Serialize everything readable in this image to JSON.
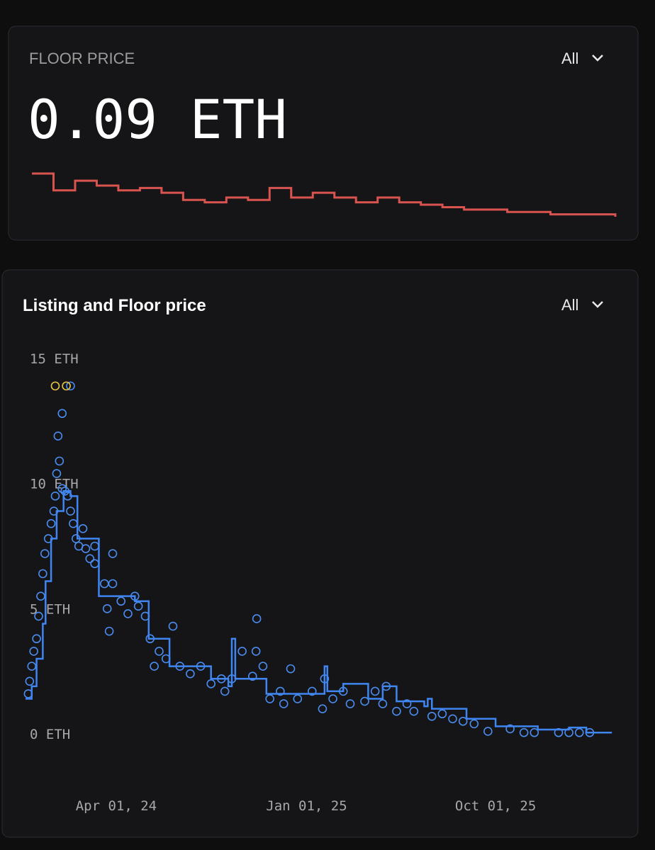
{
  "floor_card": {
    "label": "FLOOR PRICE",
    "range": "All",
    "value": "0.09 ETH",
    "sparkline_color": "#d9534f",
    "sparkline": [
      0.27,
      0.2,
      0.24,
      0.22,
      0.2,
      0.21,
      0.19,
      0.16,
      0.15,
      0.17,
      0.16,
      0.21,
      0.17,
      0.19,
      0.17,
      0.15,
      0.17,
      0.15,
      0.14,
      0.13,
      0.12,
      0.12,
      0.11,
      0.11,
      0.1,
      0.1,
      0.1,
      0.09
    ]
  },
  "chart_data": {
    "type": "scatter",
    "title": "Listing and Floor price",
    "range": "All",
    "xlim": [
      "2023-11-20",
      "2026-03-25"
    ],
    "xticks": [
      {
        "value": "2024-04-01",
        "label": "Apr 01, 24"
      },
      {
        "value": "2025-01-01",
        "label": "Jan 01, 25"
      },
      {
        "value": "2025-10-01",
        "label": "Oct 01, 25"
      }
    ],
    "ylim": [
      0,
      15
    ],
    "yticks": [
      {
        "value": 0,
        "label": "0 ETH"
      },
      {
        "value": 5,
        "label": "5 ETH"
      },
      {
        "value": 10,
        "label": "10 ETH"
      },
      {
        "value": 15,
        "label": "15 ETH"
      }
    ],
    "series": [
      {
        "type": "scatter",
        "color": "#4a8cf0",
        "x": [
          "2023-11-26",
          "2023-11-28",
          "2023-12-01",
          "2023-12-04",
          "2023-12-08",
          "2023-12-11",
          "2023-12-14",
          "2023-12-17",
          "2023-12-20",
          "2023-12-25",
          "2023-12-29",
          "2024-01-02",
          "2024-01-04",
          "2024-01-06",
          "2024-01-08",
          "2024-01-10",
          "2024-01-14",
          "2024-01-14",
          "2024-01-18",
          "2024-01-22",
          "2024-01-26",
          "2024-01-26",
          "2024-01-30",
          "2024-02-03",
          "2024-02-07",
          "2024-02-13",
          "2024-02-17",
          "2024-02-23",
          "2024-03-01",
          "2024-03-01",
          "2024-03-15",
          "2024-03-27",
          "2024-03-27",
          "2024-03-19",
          "2024-03-22",
          "2024-04-08",
          "2024-04-18",
          "2024-04-28",
          "2024-05-03",
          "2024-05-13",
          "2024-05-20",
          "2024-05-26",
          "2024-06-02",
          "2024-06-12",
          "2024-06-22",
          "2024-07-02",
          "2024-07-17",
          "2024-08-01",
          "2024-08-16",
          "2024-08-31",
          "2024-09-05",
          "2024-09-15",
          "2024-09-30",
          "2024-10-15",
          "2024-10-21",
          "2024-10-20",
          "2024-10-30",
          "2024-11-09",
          "2024-11-24",
          "2024-12-09",
          "2024-11-29",
          "2024-12-19",
          "2025-01-09",
          "2025-01-24",
          "2025-01-27",
          "2025-02-08",
          "2025-02-23",
          "2025-03-05",
          "2025-03-26",
          "2025-04-10",
          "2025-04-21",
          "2025-04-26",
          "2025-05-11",
          "2025-05-26",
          "2025-06-05",
          "2025-07-01",
          "2025-07-16",
          "2025-07-31",
          "2025-08-15",
          "2025-08-31",
          "2025-09-20",
          "2025-10-22",
          "2025-11-11",
          "2025-11-26",
          "2025-12-31",
          "2026-01-15",
          "2026-01-30",
          "2026-02-14"
        ],
        "values": [
          1.6,
          2.1,
          2.7,
          3.3,
          3.8,
          4.7,
          5.5,
          6.4,
          7.2,
          7.8,
          8.4,
          8.9,
          9.5,
          10.4,
          11.9,
          10.9,
          12.8,
          9.8,
          9.7,
          9.5,
          13.9,
          8.9,
          8.4,
          7.8,
          7.5,
          8.2,
          7.4,
          7.0,
          6.8,
          7.5,
          6.0,
          6.0,
          7.2,
          5.0,
          4.1,
          5.3,
          4.8,
          5.5,
          5.1,
          4.7,
          3.8,
          2.7,
          3.3,
          3.0,
          4.3,
          2.7,
          2.4,
          2.7,
          2.0,
          2.2,
          1.7,
          2.2,
          3.3,
          2.3,
          4.6,
          3.3,
          2.7,
          1.4,
          1.7,
          2.6,
          1.2,
          1.4,
          1.7,
          1.0,
          2.2,
          1.4,
          1.7,
          1.2,
          1.3,
          1.7,
          1.2,
          1.9,
          0.9,
          1.2,
          0.9,
          0.7,
          0.8,
          0.6,
          0.5,
          0.4,
          0.1,
          0.2,
          0.05,
          0.05,
          0.05,
          0.05,
          0.05,
          0.05
        ]
      },
      {
        "type": "scatter",
        "color": "#e8c547",
        "x": [
          "2024-01-04",
          "2024-01-20"
        ],
        "values": [
          13.9,
          13.9
        ]
      },
      {
        "type": "line",
        "color": "#3f86f2",
        "x": [
          "2023-11-22",
          "2023-12-01",
          "2023-12-08",
          "2023-12-17",
          "2023-12-21",
          "2023-12-29",
          "2024-01-06",
          "2024-01-16",
          "2024-01-26",
          "2024-02-05",
          "2024-03-07",
          "2024-04-28",
          "2024-05-18",
          "2024-06-17",
          "2024-08-16",
          "2024-09-10",
          "2024-09-15",
          "2024-09-20",
          "2024-11-04",
          "2025-01-24",
          "2025-01-27",
          "2025-01-31",
          "2025-02-23",
          "2025-03-31",
          "2025-04-21",
          "2025-05-11",
          "2025-06-20",
          "2025-06-25",
          "2025-07-01",
          "2025-08-20",
          "2025-10-01",
          "2025-12-01",
          "2026-01-15",
          "2026-02-09",
          "2026-03-18"
        ],
        "values": [
          1.4,
          1.9,
          3.0,
          4.4,
          6.1,
          7.8,
          8.9,
          9.7,
          9.5,
          7.8,
          5.5,
          5.3,
          3.8,
          2.7,
          2.2,
          1.9,
          3.8,
          2.2,
          1.6,
          1.6,
          2.7,
          1.7,
          2.0,
          1.4,
          1.9,
          1.3,
          1.1,
          1.4,
          1.0,
          0.6,
          0.3,
          0.17,
          0.25,
          0.05,
          0.05
        ]
      }
    ]
  }
}
